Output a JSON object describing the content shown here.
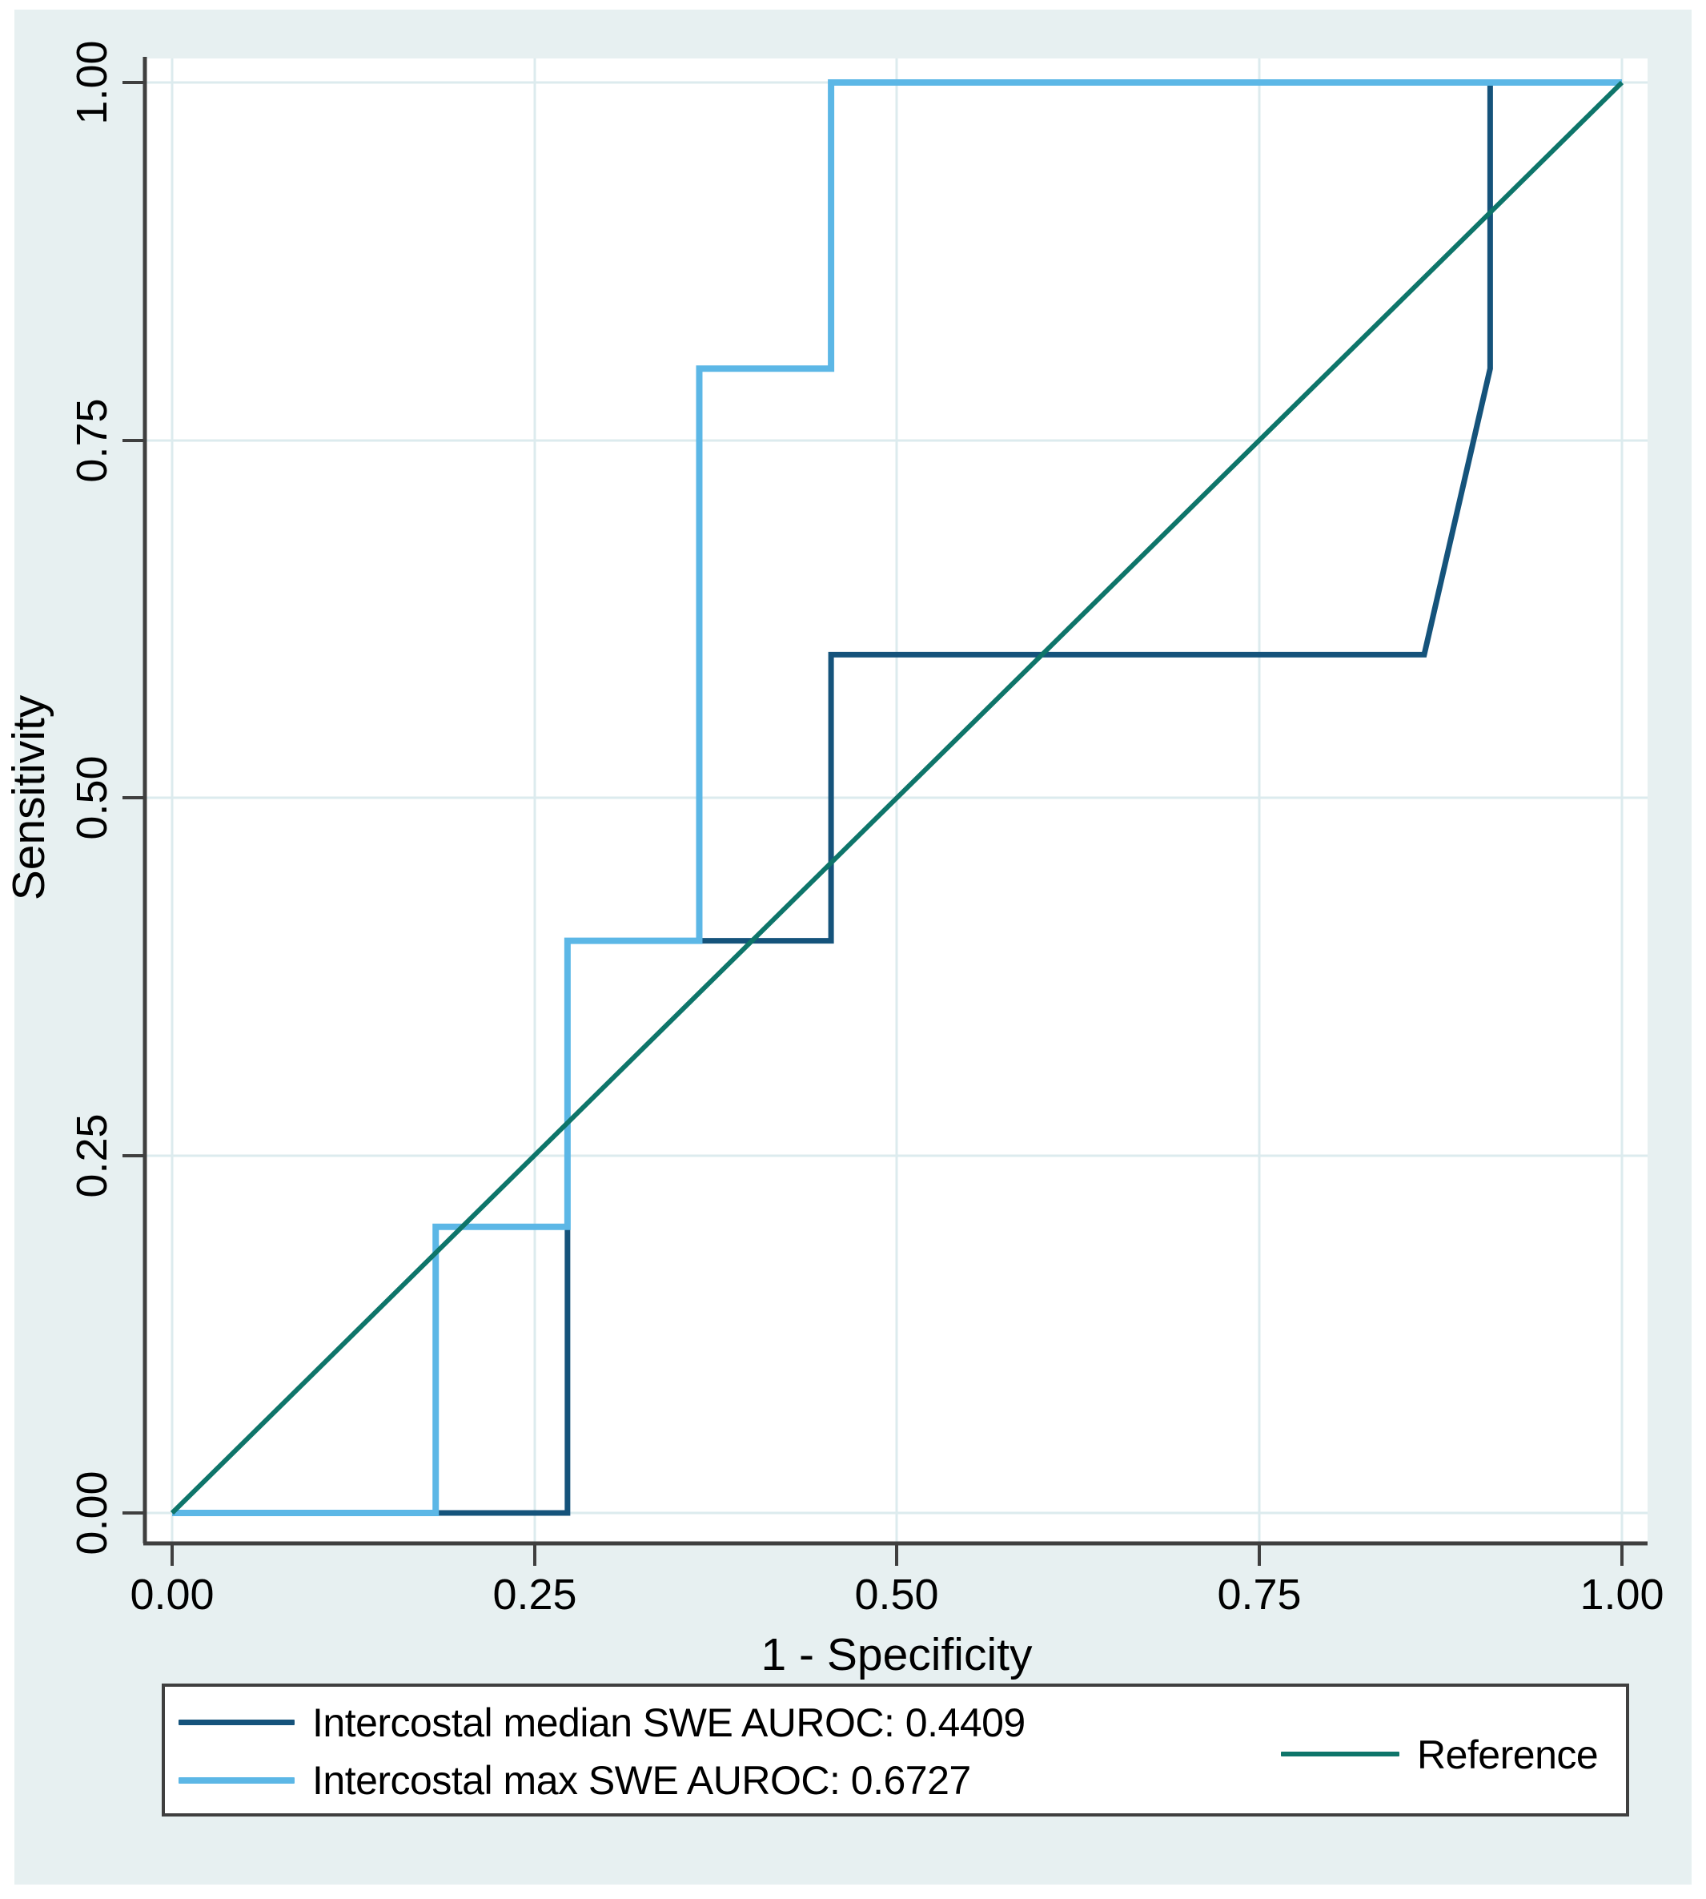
{
  "figure": {
    "panel_bg": "#e7f0f1",
    "plot_bg": "#ffffff",
    "grid_color": "#dcebee",
    "axis_color": "#3f3f3f"
  },
  "axes": {
    "x": {
      "title": "1 - Specificity",
      "tick_labels": [
        "0.00",
        "0.25",
        "0.50",
        "0.75",
        "1.00"
      ]
    },
    "y": {
      "title": "Sensitivity",
      "tick_labels": [
        "0.00",
        "0.25",
        "0.50",
        "0.75",
        "1.00"
      ]
    }
  },
  "legend": {
    "position": "bottom",
    "items": [
      {
        "label": "Intercostal median SWE AUROC: 0.4409"
      },
      {
        "label": "Intercostal max SWE AUROC: 0.6727"
      },
      {
        "label": "Reference"
      }
    ]
  },
  "chart_data": {
    "type": "line",
    "subtype": "roc-curve",
    "xlabel": "1 - Specificity",
    "ylabel": "Sensitivity",
    "xlim": [
      0,
      1
    ],
    "ylim": [
      0,
      1
    ],
    "x_ticks": [
      0,
      0.25,
      0.5,
      0.75,
      1
    ],
    "y_ticks": [
      0,
      0.25,
      0.5,
      0.75,
      1
    ],
    "x_tick_labels": [
      "0.00",
      "0.25",
      "0.50",
      "0.75",
      "1.00"
    ],
    "y_tick_labels": [
      "0.00",
      "0.25",
      "0.50",
      "0.75",
      "1.00"
    ],
    "grid": true,
    "legend_position": "bottom",
    "series": [
      {
        "id": "median",
        "name": "Intercostal median SWE AUROC: 0.4409",
        "auroc": 0.4409,
        "color": "#15537b",
        "stroke_width": 7,
        "points": [
          [
            0,
            0
          ],
          [
            0.2727,
            0
          ],
          [
            0.2727,
            0.4
          ],
          [
            0.4545,
            0.4
          ],
          [
            0.4545,
            0.6
          ],
          [
            0.8636,
            0.6
          ],
          [
            0.9091,
            0.8
          ],
          [
            0.9091,
            1
          ],
          [
            1,
            1
          ]
        ]
      },
      {
        "id": "max",
        "name": "Intercostal max SWE AUROC: 0.6727",
        "auroc": 0.6727,
        "color": "#5cb7e6",
        "stroke_width": 8,
        "points": [
          [
            0,
            0
          ],
          [
            0.1818,
            0
          ],
          [
            0.1818,
            0.2
          ],
          [
            0.2727,
            0.2
          ],
          [
            0.2727,
            0.4
          ],
          [
            0.3636,
            0.4
          ],
          [
            0.3636,
            0.8
          ],
          [
            0.4545,
            0.8
          ],
          [
            0.4545,
            1
          ],
          [
            1,
            1
          ]
        ]
      },
      {
        "id": "reference",
        "name": "Reference",
        "color": "#0e756a",
        "stroke_width": 6,
        "points": [
          [
            0,
            0
          ],
          [
            1,
            1
          ]
        ]
      }
    ]
  }
}
